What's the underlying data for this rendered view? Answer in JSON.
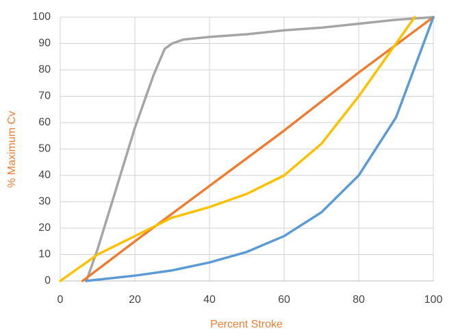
{
  "chart_data": {
    "type": "line",
    "xlabel": "Percent Stroke",
    "ylabel": "% Maximum Cv",
    "xlim": [
      0,
      100
    ],
    "xticks": [
      0,
      20,
      40,
      60,
      80,
      100
    ],
    "ylim": [
      0,
      100
    ],
    "yticks": [
      0,
      10,
      20,
      30,
      40,
      50,
      60,
      70,
      80,
      90,
      100
    ],
    "grid": true,
    "series": [
      {
        "color": "#a5a5a5",
        "x": [
          7,
          10,
          15,
          20,
          25,
          28,
          30,
          33,
          40,
          50,
          60,
          70,
          80,
          90,
          100
        ],
        "values": [
          0,
          12,
          35,
          58,
          78,
          88,
          90,
          91.5,
          92.5,
          93.5,
          95,
          96,
          97.5,
          99,
          100
        ]
      },
      {
        "color": "#ed7d31",
        "x": [
          6,
          20,
          40,
          60,
          80,
          100
        ],
        "values": [
          0,
          15,
          36,
          57,
          79,
          100
        ]
      },
      {
        "color": "#ffc000",
        "x": [
          0,
          5,
          10,
          20,
          30,
          40,
          50,
          60,
          70,
          80,
          90,
          95
        ],
        "values": [
          0,
          5,
          10,
          17,
          24,
          28,
          33,
          40,
          52,
          70,
          90,
          100
        ]
      },
      {
        "color": "#5b9bd5",
        "x": [
          7,
          20,
          30,
          40,
          50,
          60,
          70,
          80,
          90,
          100
        ],
        "values": [
          0,
          2,
          4,
          7,
          11,
          17,
          26,
          40,
          62,
          100
        ]
      }
    ]
  }
}
